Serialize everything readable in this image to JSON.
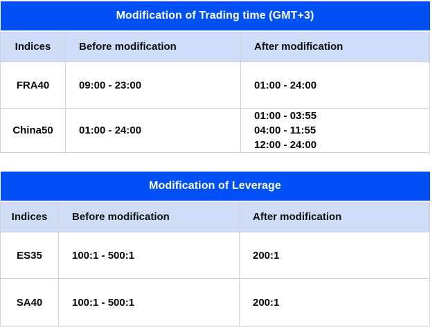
{
  "colors": {
    "title_bar_bg": "#0050f5",
    "title_bar_text": "#ffffff",
    "column_header_bg": "#cedcf8",
    "cell_border": "#d2d2d6",
    "body_text": "#050505"
  },
  "tables": [
    {
      "title": "Modification of Trading time (GMT+3)",
      "columns": {
        "indices": "Indices",
        "before": "Before modification",
        "after": "After modification"
      },
      "rows": [
        {
          "index": "FRA40",
          "before": "09:00 - 23:00",
          "after": "01:00 - 24:00"
        },
        {
          "index": "China50",
          "before": "01:00 - 24:00",
          "after": "01:00 - 03:55\n04:00 - 11:55\n12:00 - 24:00"
        }
      ]
    },
    {
      "title": "Modification of Leverage",
      "columns": {
        "indices": "Indices",
        "before": "Before modification",
        "after": "After modification"
      },
      "rows": [
        {
          "index": "ES35",
          "before": "100:1 - 500:1",
          "after": "200:1"
        },
        {
          "index": "SA40",
          "before": "100:1 - 500:1",
          "after": "200:1"
        }
      ]
    }
  ]
}
